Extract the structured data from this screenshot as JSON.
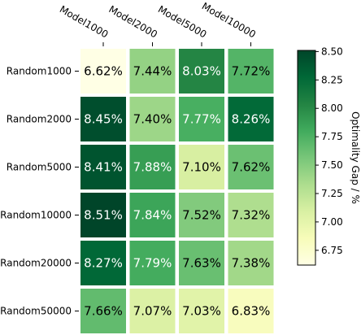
{
  "chart_data": {
    "type": "heatmap",
    "title": "",
    "x_labels": [
      "Model1000",
      "Model2000",
      "Model5000",
      "Model10000"
    ],
    "y_labels": [
      "Random1000",
      "Random2000",
      "Random5000",
      "Random10000",
      "Random20000",
      "Random50000"
    ],
    "values": [
      [
        6.62,
        7.44,
        8.03,
        7.72
      ],
      [
        8.45,
        7.4,
        7.77,
        8.26
      ],
      [
        8.41,
        7.88,
        7.1,
        7.62
      ],
      [
        8.51,
        7.84,
        7.52,
        7.32
      ],
      [
        8.27,
        7.79,
        7.63,
        7.38
      ],
      [
        7.66,
        7.07,
        7.03,
        6.83
      ]
    ],
    "cell_labels": [
      [
        "6.62%",
        "7.44%",
        "8.03%",
        "7.72%"
      ],
      [
        "8.45%",
        "7.40%",
        "7.77%",
        "8.26%"
      ],
      [
        "8.41%",
        "7.88%",
        "7.10%",
        "7.62%"
      ],
      [
        "8.51%",
        "7.84%",
        "7.52%",
        "7.32%"
      ],
      [
        "8.27%",
        "7.79%",
        "7.63%",
        "7.38%"
      ],
      [
        "7.66%",
        "7.07%",
        "7.03%",
        "6.83%"
      ]
    ],
    "colorbar": {
      "label": "Optimality Gap / %",
      "range": [
        6.62,
        8.51
      ],
      "ticks": [
        6.75,
        7.0,
        7.25,
        7.5,
        7.75,
        8.0,
        8.25,
        8.5
      ],
      "tick_labels": [
        "6.75",
        "7.00",
        "7.25",
        "7.50",
        "7.75",
        "8.00",
        "8.25",
        "8.50"
      ],
      "colormap": "YlGn",
      "colors": [
        "#ffffe5",
        "#f7fcb9",
        "#d9f0a3",
        "#addd8e",
        "#78c679",
        "#41ab5d",
        "#238443",
        "#006837",
        "#004529"
      ]
    },
    "grid": false,
    "x_tick_position": "top",
    "x_tick_rotation": "-30deg"
  }
}
